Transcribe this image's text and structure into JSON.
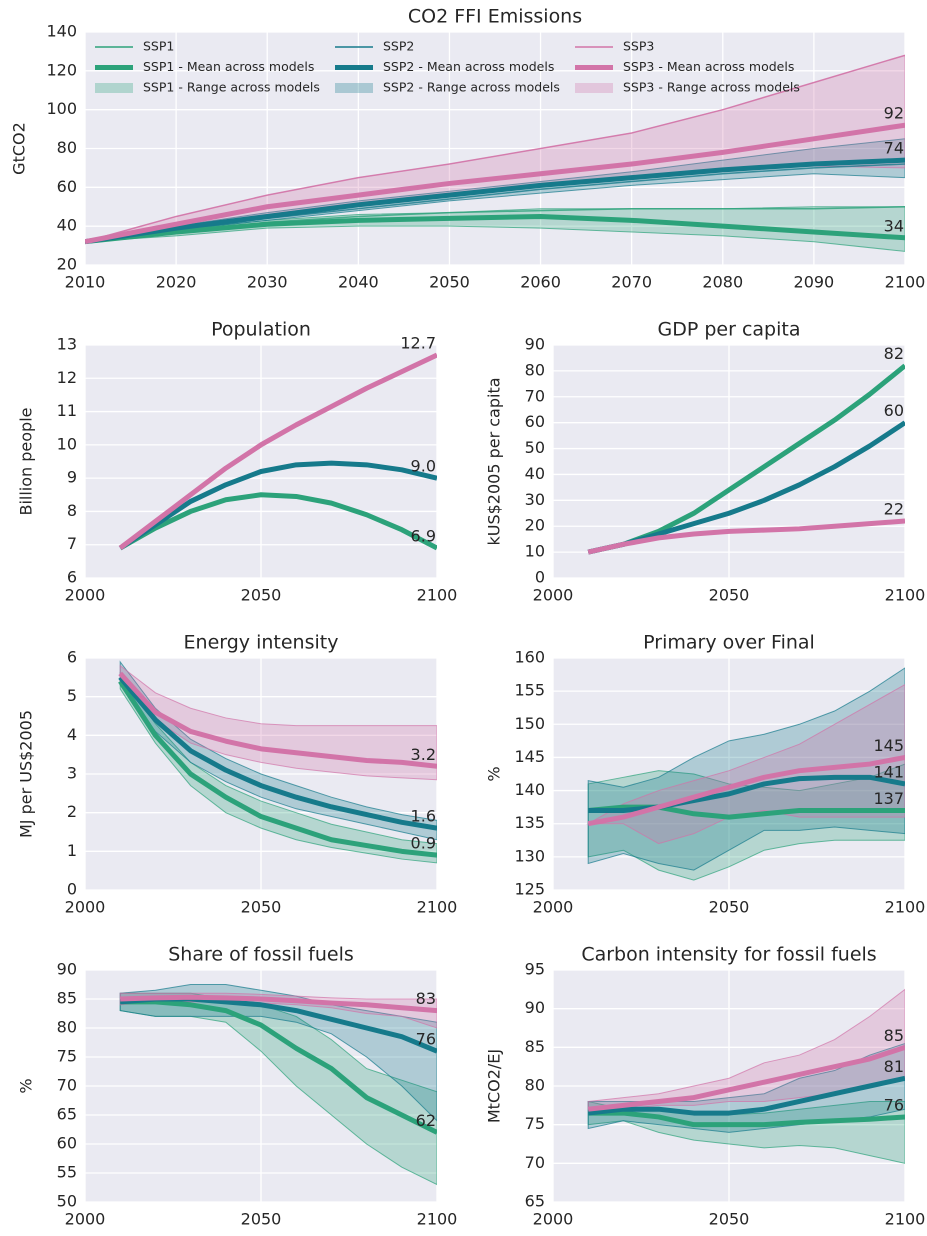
{
  "chart_data": [
    {
      "type": "line",
      "title": "CO2 FFI Emissions",
      "ylabel": "GtCO2",
      "x": [
        2010,
        2020,
        2030,
        2040,
        2050,
        2060,
        2070,
        2080,
        2090,
        2100
      ],
      "xlim": [
        2010,
        2100
      ],
      "xticks": [
        2010,
        2020,
        2030,
        2040,
        2050,
        2060,
        2070,
        2080,
        2090,
        2100
      ],
      "ylim": [
        20,
        140
      ],
      "yticks": [
        20,
        40,
        60,
        80,
        100,
        120,
        140
      ],
      "grid": true,
      "legend": "top",
      "series": [
        {
          "name": "SSP1",
          "kind": "model",
          "color": "#2ca27a",
          "values": [
            32,
            37,
            42,
            45,
            47,
            48,
            49,
            49,
            49,
            50
          ]
        },
        {
          "name": "SSP1 - Mean across models",
          "kind": "mean",
          "color": "#2ca27a",
          "values": [
            32,
            37,
            41,
            43,
            44,
            45,
            43,
            40,
            37,
            34
          ]
        },
        {
          "name": "SSP1 - Range across models",
          "kind": "range",
          "color": "#2ca27a",
          "lower": [
            32,
            35,
            39,
            40,
            40,
            39,
            37,
            35,
            32,
            27
          ],
          "upper": [
            32,
            38,
            43,
            46,
            47,
            49,
            49,
            49,
            50,
            50
          ]
        },
        {
          "name": "SSP2",
          "kind": "model",
          "color": "#167a8b",
          "values": [
            32,
            38,
            44,
            49,
            54,
            59,
            63,
            67,
            70,
            72
          ]
        },
        {
          "name": "SSP2 - Mean across models",
          "kind": "mean",
          "color": "#167a8b",
          "values": [
            32,
            39,
            45,
            51,
            56,
            61,
            65,
            69,
            72,
            74
          ]
        },
        {
          "name": "SSP2 - Range across models",
          "kind": "range",
          "color": "#167a8b",
          "lower": [
            32,
            38,
            43,
            48,
            53,
            57,
            61,
            64,
            67,
            65
          ],
          "upper": [
            32,
            40,
            47,
            53,
            58,
            63,
            68,
            74,
            80,
            85
          ]
        },
        {
          "name": "SSP3",
          "kind": "model",
          "color": "#d274a8",
          "values": [
            32,
            45,
            56,
            65,
            72,
            80,
            88,
            100,
            114,
            128
          ]
        },
        {
          "name": "SSP3 - Mean across models",
          "kind": "mean",
          "color": "#d274a8",
          "values": [
            32,
            41,
            50,
            56,
            62,
            67,
            72,
            78,
            85,
            92
          ]
        },
        {
          "name": "SSP3 - Range across models",
          "kind": "range",
          "color": "#d274a8",
          "lower": [
            32,
            39,
            46,
            52,
            57,
            61,
            65,
            69,
            71,
            70
          ],
          "upper": [
            32,
            45,
            56,
            65,
            72,
            80,
            88,
            100,
            114,
            128
          ]
        }
      ]
    },
    {
      "type": "line",
      "title": "Population",
      "ylabel": "Billion people",
      "x": [
        2010,
        2020,
        2030,
        2040,
        2050,
        2060,
        2070,
        2080,
        2090,
        2100
      ],
      "xlim": [
        2000,
        2100
      ],
      "xticks": [
        2000,
        2050,
        2100
      ],
      "ylim": [
        6,
        13
      ],
      "yticks": [
        6,
        7,
        8,
        9,
        10,
        11,
        12,
        13
      ],
      "grid": true,
      "series": [
        {
          "kind": "mean",
          "color": "#2ca27a",
          "values": [
            6.9,
            7.5,
            8.0,
            8.35,
            8.5,
            8.45,
            8.25,
            7.9,
            7.45,
            6.9
          ]
        },
        {
          "kind": "mean",
          "color": "#167a8b",
          "values": [
            6.9,
            7.6,
            8.3,
            8.8,
            9.2,
            9.4,
            9.45,
            9.4,
            9.25,
            9
          ],
          "value_labels": [
            null,
            null,
            null,
            null,
            null,
            null,
            null,
            null,
            null,
            "9.0"
          ]
        },
        {
          "kind": "mean",
          "color": "#d274a8",
          "values": [
            6.9,
            7.7,
            8.5,
            9.3,
            10.0,
            10.6,
            11.15,
            11.7,
            12.2,
            12.7
          ]
        }
      ]
    },
    {
      "type": "line",
      "title": "GDP per capita",
      "ylabel": "kUS$2005 per capita",
      "x": [
        2010,
        2020,
        2030,
        2040,
        2050,
        2060,
        2070,
        2080,
        2090,
        2100
      ],
      "xlim": [
        2000,
        2100
      ],
      "xticks": [
        2000,
        2050,
        2100
      ],
      "ylim": [
        0,
        90
      ],
      "yticks": [
        0,
        10,
        20,
        30,
        40,
        50,
        60,
        70,
        80,
        90
      ],
      "grid": true,
      "series": [
        {
          "kind": "mean",
          "color": "#2ca27a",
          "values": [
            10,
            13,
            18,
            25,
            34,
            43,
            52,
            61,
            71,
            82
          ]
        },
        {
          "kind": "mean",
          "color": "#167a8b",
          "values": [
            10,
            13,
            17,
            21,
            25,
            30,
            36,
            43,
            51,
            60
          ]
        },
        {
          "kind": "mean",
          "color": "#d274a8",
          "values": [
            10,
            13,
            15.5,
            17,
            18,
            18.5,
            19,
            20,
            21,
            22
          ]
        }
      ]
    },
    {
      "type": "line",
      "title": "Energy intensity",
      "ylabel": "MJ per US$2005",
      "x": [
        2010,
        2020,
        2030,
        2040,
        2050,
        2060,
        2070,
        2080,
        2090,
        2100
      ],
      "xlim": [
        2000,
        2100
      ],
      "xticks": [
        2000,
        2050,
        2100
      ],
      "ylim": [
        0,
        6
      ],
      "yticks": [
        0,
        1,
        2,
        3,
        4,
        5,
        6
      ],
      "grid": true,
      "series": [
        {
          "kind": "range",
          "color": "#2ca27a",
          "lower": [
            5.2,
            3.8,
            2.7,
            2.0,
            1.6,
            1.3,
            1.1,
            0.95,
            0.8,
            0.7
          ],
          "upper": [
            5.6,
            4.3,
            3.3,
            2.7,
            2.3,
            2.0,
            1.7,
            1.5,
            1.3,
            1.2
          ]
        },
        {
          "kind": "range",
          "color": "#167a8b",
          "lower": [
            5.3,
            4.1,
            3.3,
            2.8,
            2.4,
            2.1,
            1.9,
            1.7,
            1.5,
            1.3
          ],
          "upper": [
            5.9,
            4.7,
            3.9,
            3.4,
            3.0,
            2.7,
            2.4,
            2.15,
            1.95,
            1.8
          ]
        },
        {
          "kind": "range",
          "color": "#d274a8",
          "lower": [
            5.4,
            4.4,
            3.8,
            3.5,
            3.3,
            3.15,
            3.05,
            2.95,
            2.9,
            2.85
          ],
          "upper": [
            5.8,
            5.1,
            4.7,
            4.45,
            4.3,
            4.25,
            4.25,
            4.25,
            4.25,
            4.25
          ]
        },
        {
          "kind": "mean",
          "color": "#2ca27a",
          "values": [
            5.4,
            4.0,
            3.0,
            2.4,
            1.9,
            1.6,
            1.3,
            1.15,
            1.0,
            0.9
          ]
        },
        {
          "kind": "mean",
          "color": "#167a8b",
          "values": [
            5.5,
            4.4,
            3.6,
            3.1,
            2.7,
            2.4,
            2.15,
            1.95,
            1.75,
            1.6
          ]
        },
        {
          "kind": "mean",
          "color": "#d274a8",
          "values": [
            5.6,
            4.6,
            4.1,
            3.85,
            3.65,
            3.55,
            3.45,
            3.35,
            3.3,
            3.2
          ]
        }
      ]
    },
    {
      "type": "line",
      "title": "Primary over Final",
      "ylabel": "%",
      "x": [
        2010,
        2020,
        2030,
        2040,
        2050,
        2060,
        2070,
        2080,
        2090,
        2100
      ],
      "xlim": [
        2000,
        2100
      ],
      "xticks": [
        2000,
        2050,
        2100
      ],
      "ylim": [
        125,
        160
      ],
      "yticks": [
        125,
        130,
        135,
        140,
        145,
        150,
        155,
        160
      ],
      "grid": true,
      "series": [
        {
          "kind": "range",
          "color": "#2ca27a",
          "lower": [
            130,
            131,
            128,
            126.5,
            128.5,
            131,
            132,
            132.5,
            132.5,
            132.5
          ],
          "upper": [
            141,
            142,
            143,
            142.5,
            141,
            140.5,
            140,
            141,
            142,
            144
          ]
        },
        {
          "kind": "range",
          "color": "#167a8b",
          "lower": [
            129,
            130.5,
            129,
            128,
            131,
            134,
            134,
            134.5,
            134,
            133.5
          ],
          "upper": [
            141.5,
            140.5,
            142,
            145,
            147.5,
            148.5,
            150,
            152,
            155,
            158.5
          ]
        },
        {
          "kind": "range",
          "color": "#d274a8",
          "lower": [
            135,
            135,
            132,
            133.5,
            136,
            137,
            136,
            136,
            136,
            136
          ],
          "upper": [
            135,
            138,
            140,
            141.5,
            143,
            145,
            147,
            150,
            153,
            156
          ]
        },
        {
          "kind": "mean",
          "color": "#2ca27a",
          "values": [
            137,
            137.5,
            137.5,
            136.5,
            136,
            136.5,
            137,
            137,
            137,
            137
          ]
        },
        {
          "kind": "mean",
          "color": "#167a8b",
          "values": [
            137,
            137,
            137.5,
            138.5,
            139.5,
            141,
            141.8,
            142,
            142,
            141
          ]
        },
        {
          "kind": "mean",
          "color": "#d274a8",
          "values": [
            135,
            136,
            137.5,
            139,
            140.5,
            142,
            143,
            143.5,
            144,
            145
          ]
        }
      ]
    },
    {
      "type": "line",
      "title": "Share of fossil fuels",
      "ylabel": "%",
      "x": [
        2010,
        2020,
        2030,
        2040,
        2050,
        2060,
        2070,
        2080,
        2090,
        2100
      ],
      "xlim": [
        2000,
        2100
      ],
      "xticks": [
        2000,
        2050,
        2100
      ],
      "ylim": [
        50,
        90
      ],
      "yticks": [
        50,
        55,
        60,
        65,
        70,
        75,
        80,
        85,
        90
      ],
      "grid": true,
      "series": [
        {
          "kind": "range",
          "color": "#2ca27a",
          "lower": [
            83,
            82,
            82,
            81,
            76,
            70,
            65,
            60,
            56,
            53
          ],
          "upper": [
            86,
            86,
            86,
            85,
            84,
            82,
            78,
            73,
            71,
            69
          ]
        },
        {
          "kind": "range",
          "color": "#167a8b",
          "lower": [
            83,
            82,
            82,
            82,
            82,
            81,
            79,
            75,
            70,
            64
          ],
          "upper": [
            86,
            86.5,
            87.5,
            87.5,
            86.5,
            85.5,
            84,
            83,
            82,
            81
          ]
        },
        {
          "kind": "range",
          "color": "#d274a8",
          "lower": [
            84,
            84.5,
            84.5,
            84.5,
            84.3,
            84,
            83.5,
            82.5,
            82,
            80
          ],
          "upper": [
            86,
            86,
            86,
            86,
            85.8,
            85.5,
            85.2,
            85,
            85,
            85
          ]
        },
        {
          "kind": "mean",
          "color": "#2ca27a",
          "values": [
            84.5,
            84.5,
            84,
            83,
            80.5,
            76.5,
            73,
            68,
            65,
            62
          ]
        },
        {
          "kind": "mean",
          "color": "#167a8b",
          "values": [
            84.5,
            85,
            85,
            84.5,
            84,
            83,
            81.5,
            80,
            78.5,
            76
          ]
        },
        {
          "kind": "mean",
          "color": "#d274a8",
          "values": [
            85,
            85.2,
            85.3,
            85.2,
            85,
            84.7,
            84.3,
            84,
            83.5,
            83
          ]
        }
      ]
    },
    {
      "type": "line",
      "title": "Carbon intensity for fossil fuels",
      "ylabel": "MtCO2/EJ",
      "x": [
        2010,
        2020,
        2030,
        2040,
        2050,
        2060,
        2070,
        2080,
        2090,
        2100
      ],
      "xlim": [
        2000,
        2100
      ],
      "xticks": [
        2000,
        2050,
        2100
      ],
      "ylim": [
        65,
        95
      ],
      "yticks": [
        65,
        70,
        75,
        80,
        85,
        90,
        95
      ],
      "grid": true,
      "series": [
        {
          "kind": "range",
          "color": "#2ca27a",
          "lower": [
            75,
            75.5,
            74,
            73,
            72.5,
            72,
            72.3,
            72,
            71,
            70
          ],
          "upper": [
            78,
            77,
            77,
            76.5,
            76.3,
            76.5,
            77,
            77.5,
            78,
            78
          ]
        },
        {
          "kind": "range",
          "color": "#167a8b",
          "lower": [
            74.5,
            75.5,
            75,
            74.5,
            74,
            74.5,
            75,
            75.5,
            76,
            77
          ],
          "upper": [
            78,
            78,
            78,
            78,
            78.5,
            79,
            81,
            82,
            84,
            85.5
          ]
        },
        {
          "kind": "range",
          "color": "#d274a8",
          "lower": [
            77,
            77,
            77.5,
            77.5,
            78,
            78,
            78.5,
            79,
            80,
            81
          ],
          "upper": [
            78,
            78.5,
            79,
            80,
            81,
            83,
            84,
            86,
            89,
            92.5
          ]
        },
        {
          "kind": "mean",
          "color": "#2ca27a",
          "values": [
            76.5,
            76.5,
            76,
            75,
            75,
            75,
            75.3,
            75.5,
            75.7,
            76
          ]
        },
        {
          "kind": "mean",
          "color": "#167a8b",
          "values": [
            76.5,
            77,
            77,
            76.5,
            76.5,
            77,
            78,
            79,
            80,
            81
          ]
        },
        {
          "kind": "mean",
          "color": "#d274a8",
          "values": [
            77,
            77.5,
            78,
            78.5,
            79.5,
            80.5,
            81.5,
            82.5,
            83.5,
            85
          ]
        }
      ]
    }
  ]
}
